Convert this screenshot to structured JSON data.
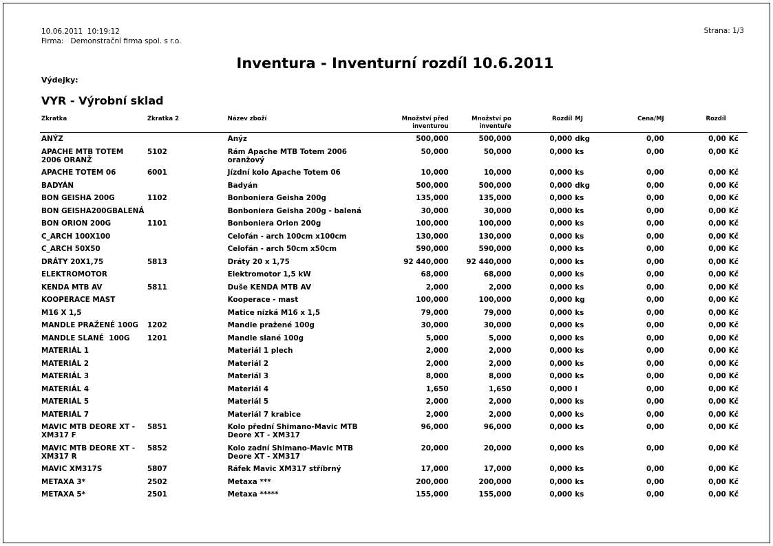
{
  "header": {
    "datetime": "10.06.2011  10:19:12",
    "firm_label": "Firma:",
    "firm_name": "Demonstrační firma spol. s r.o.",
    "page": "Strana: 1/3"
  },
  "title": "Inventura - Inventurní rozdíl 10.6.2011",
  "section": "Výdejky:",
  "warehouse": "VYR - Výrobní sklad",
  "columns": [
    "Zkratka",
    "Zkratka 2",
    "Název zboží",
    "Množství před inventurou",
    "Množství po inventuře",
    "Rozdíl",
    "MJ",
    "Cena/MJ",
    "Rozdíl",
    ""
  ],
  "rows": [
    [
      "ANÝZ",
      "",
      "Anýz",
      "500,000",
      "500,000",
      "0,000",
      "dkg",
      "0,00",
      "0,00",
      "Kč"
    ],
    [
      "APACHE MTB TOTEM 2006 ORANŽ",
      "5102",
      "Rám Apache MTB Totem 2006 oranžový",
      "50,000",
      "50,000",
      "0,000",
      "ks",
      "0,00",
      "0,00",
      "Kč"
    ],
    [
      "APACHE TOTEM 06",
      "6001",
      "Jízdní kolo Apache Totem 06",
      "10,000",
      "10,000",
      "0,000",
      "ks",
      "0,00",
      "0,00",
      "Kč"
    ],
    [
      "BADYÁN",
      "",
      "Badyán",
      "500,000",
      "500,000",
      "0,000",
      "dkg",
      "0,00",
      "0,00",
      "Kč"
    ],
    [
      "BON GEISHA 200G",
      "1102",
      "Bonboniera Geisha 200g",
      "135,000",
      "135,000",
      "0,000",
      "ks",
      "0,00",
      "0,00",
      "Kč"
    ],
    [
      "BON GEISHA200GBALENÁ",
      "",
      "Bonboniera Geisha 200g - balená",
      "30,000",
      "30,000",
      "0,000",
      "ks",
      "0,00",
      "0,00",
      "Kč"
    ],
    [
      "BON ORION 200G",
      "1101",
      "Bonboniera Orion 200g",
      "100,000",
      "100,000",
      "0,000",
      "ks",
      "0,00",
      "0,00",
      "Kč"
    ],
    [
      "C_ARCH 100X100",
      "",
      "Celofán - arch 100cm x100cm",
      "130,000",
      "130,000",
      "0,000",
      "ks",
      "0,00",
      "0,00",
      "Kč"
    ],
    [
      "C_ARCH 50X50",
      "",
      "Celofán - arch 50cm x50cm",
      "590,000",
      "590,000",
      "0,000",
      "ks",
      "0,00",
      "0,00",
      "Kč"
    ],
    [
      "DRÁTY 20X1,75",
      "5813",
      "Dráty 20 x 1,75",
      "92 440,000",
      "92 440,000",
      "0,000",
      "ks",
      "0,00",
      "0,00",
      "Kč"
    ],
    [
      "ELEKTROMOTOR",
      "",
      "Elektromotor 1,5 kW",
      "68,000",
      "68,000",
      "0,000",
      "ks",
      "0,00",
      "0,00",
      "Kč"
    ],
    [
      "KENDA MTB AV",
      "5811",
      "Duše KENDA MTB AV",
      "2,000",
      "2,000",
      "0,000",
      "ks",
      "0,00",
      "0,00",
      "Kč"
    ],
    [
      "KOOPERACE MAST",
      "",
      "Kooperace - mast",
      "100,000",
      "100,000",
      "0,000",
      "kg",
      "0,00",
      "0,00",
      "Kč"
    ],
    [
      "M16 X 1,5",
      "",
      "Matice nízká M16 x 1,5",
      "79,000",
      "79,000",
      "0,000",
      "ks",
      "0,00",
      "0,00",
      "Kč"
    ],
    [
      "MANDLE PRAŽENÉ 100G",
      "1202",
      "Mandle pražené 100g",
      "30,000",
      "30,000",
      "0,000",
      "ks",
      "0,00",
      "0,00",
      "Kč"
    ],
    [
      "MANDLE SLANÉ  100G",
      "1201",
      "Mandle slané 100g",
      "5,000",
      "5,000",
      "0,000",
      "ks",
      "0,00",
      "0,00",
      "Kč"
    ],
    [
      "MATERIÁL 1",
      "",
      "Materiál 1 plech",
      "2,000",
      "2,000",
      "0,000",
      "ks",
      "0,00",
      "0,00",
      "Kč"
    ],
    [
      "MATERIÁL 2",
      "",
      "Materiál 2",
      "2,000",
      "2,000",
      "0,000",
      "ks",
      "0,00",
      "0,00",
      "Kč"
    ],
    [
      "MATERIÁL 3",
      "",
      "Materiál 3",
      "8,000",
      "8,000",
      "0,000",
      "ks",
      "0,00",
      "0,00",
      "Kč"
    ],
    [
      "MATERIÁL 4",
      "",
      "Materiál 4",
      "1,650",
      "1,650",
      "0,000",
      "l",
      "0,00",
      "0,00",
      "Kč"
    ],
    [
      "MATERIÁL 5",
      "",
      "Materiál 5",
      "2,000",
      "2,000",
      "0,000",
      "ks",
      "0,00",
      "0,00",
      "Kč"
    ],
    [
      "MATERIÁL 7",
      "",
      "Materiál 7 krabice",
      "2,000",
      "2,000",
      "0,000",
      "ks",
      "0,00",
      "0,00",
      "Kč"
    ],
    [
      "MAVIC MTB DEORE XT - XM317 F",
      "5851",
      "Kolo přední Shimano-Mavic MTB Deore XT - XM317",
      "96,000",
      "96,000",
      "0,000",
      "ks",
      "0,00",
      "0,00",
      "Kč"
    ],
    [
      "MAVIC MTB DEORE XT - XM317 R",
      "5852",
      "Kolo zadní Shimano-Mavic MTB Deore XT - XM317",
      "20,000",
      "20,000",
      "0,000",
      "ks",
      "0,00",
      "0,00",
      "Kč"
    ],
    [
      "MAVIC XM317S",
      "5807",
      "Ráfek Mavic XM317 stříbrný",
      "17,000",
      "17,000",
      "0,000",
      "ks",
      "0,00",
      "0,00",
      "Kč"
    ],
    [
      "METAXA 3*",
      "2502",
      "Metaxa ***",
      "200,000",
      "200,000",
      "0,000",
      "ks",
      "0,00",
      "0,00",
      "Kč"
    ],
    [
      "METAXA 5*",
      "2501",
      "Metaxa *****",
      "155,000",
      "155,000",
      "0,000",
      "ks",
      "0,00",
      "0,00",
      "Kč"
    ]
  ]
}
